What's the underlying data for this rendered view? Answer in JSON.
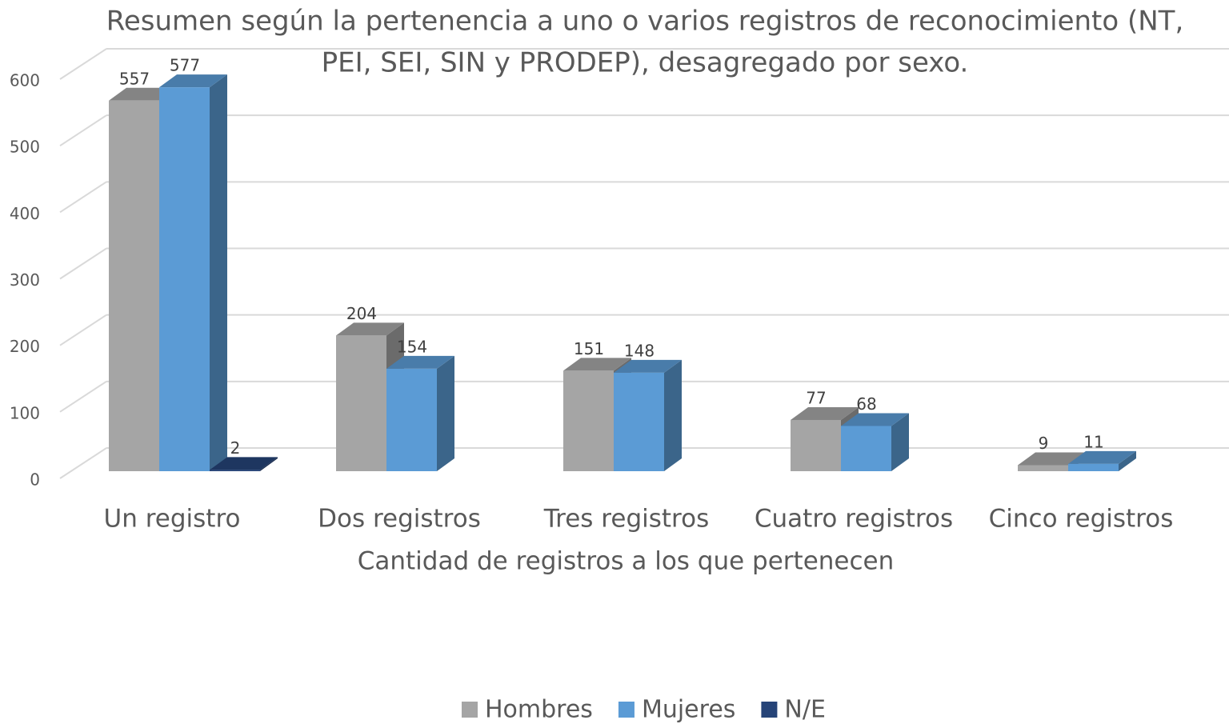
{
  "chart_data": {
    "type": "bar3d",
    "title": [
      "Resumen según la pertenencia a uno o varios registros de reconocimiento (NT,",
      "PEI, SEI, SIN y PRODEP), desagregado por sexo."
    ],
    "x_label": "Cantidad de registros a los que pertenecen",
    "categories": [
      "Un registro",
      "Dos registros",
      "Tres registros",
      "Cuatro registros",
      "Cinco registros"
    ],
    "series": [
      {
        "name": "Hombres",
        "color": "#a5a5a5",
        "values": [
          557,
          204,
          151,
          77,
          9
        ]
      },
      {
        "name": "Mujeres",
        "color": "#5b9bd5",
        "values": [
          577,
          154,
          148,
          68,
          11
        ]
      },
      {
        "name": "N/E",
        "color": "#264478",
        "values": [
          2,
          null,
          null,
          null,
          null
        ]
      }
    ],
    "ylim": [
      0,
      600
    ],
    "yticks": [
      0,
      100,
      200,
      300,
      400,
      500,
      600
    ],
    "grid": true,
    "legend": "bottom"
  }
}
